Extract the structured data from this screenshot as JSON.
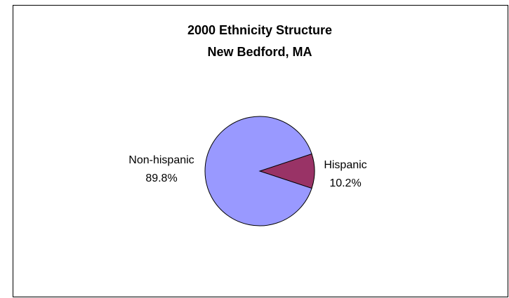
{
  "chart_data": {
    "type": "pie",
    "title_lines": [
      "2000 Ethnicity Structure",
      "New Bedford, MA"
    ],
    "slices": [
      {
        "label": "Hispanic",
        "percent_label": "10.2%",
        "value": 10.2,
        "color": "#993366"
      },
      {
        "label": "Non-hispanic",
        "percent_label": "89.8%",
        "value": 89.8,
        "color": "#9999ff"
      }
    ],
    "legend": "none"
  }
}
